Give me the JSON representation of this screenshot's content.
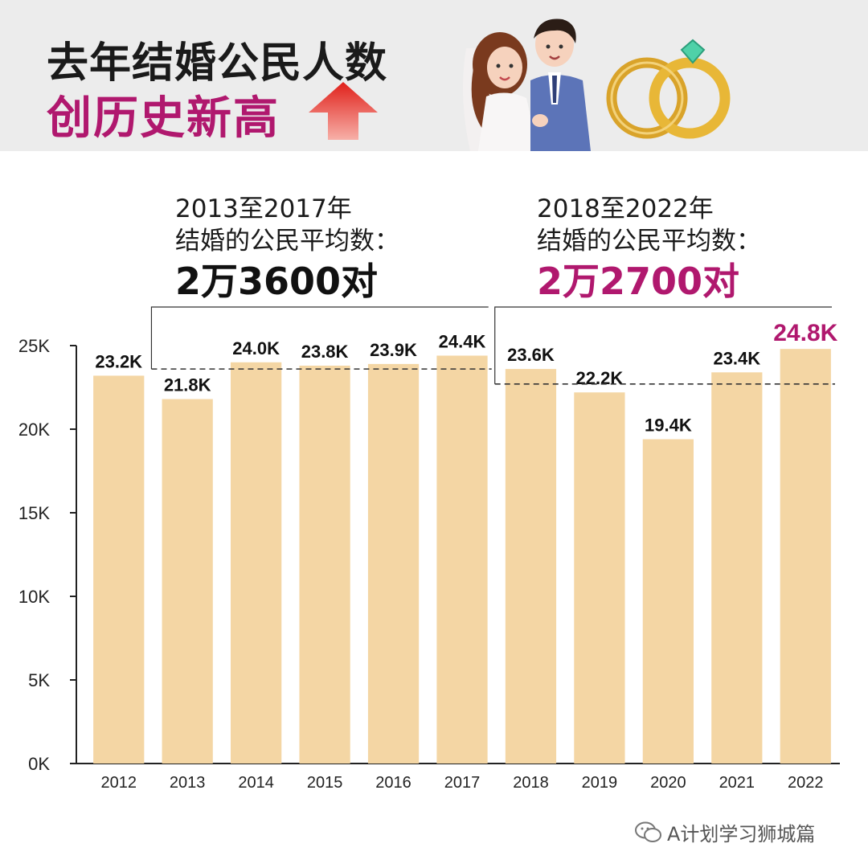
{
  "header": {
    "title_line1": "去年结婚公民人数",
    "title_line2": "创历史新高",
    "accent_color": "#b0186e",
    "arrow_color": "#e0201a"
  },
  "averages": [
    {
      "line1": "2013至2017年",
      "line2": "结婚的公民平均数：",
      "value": "2万3600对",
      "color": "#111111"
    },
    {
      "line1": "2018至2022年",
      "line2": "结婚的公民平均数：",
      "value": "2万2700对",
      "color": "#b0186e"
    }
  ],
  "watermark": "A计划学习狮城篇",
  "chart_data": {
    "type": "bar",
    "categories": [
      "2012",
      "2013",
      "2014",
      "2015",
      "2016",
      "2017",
      "2018",
      "2019",
      "2020",
      "2021",
      "2022"
    ],
    "values": [
      23200,
      21800,
      24000,
      23800,
      23900,
      24400,
      23600,
      22200,
      19400,
      23400,
      24800
    ],
    "data_labels": [
      "23.2K",
      "21.8K",
      "24.0K",
      "23.8K",
      "23.9K",
      "24.4K",
      "23.6K",
      "22.2K",
      "19.4K",
      "23.4K",
      "24.8K"
    ],
    "highlight_index": 10,
    "ylim": [
      0,
      25000
    ],
    "yticks": [
      0,
      5000,
      10000,
      15000,
      20000,
      25000
    ],
    "ytick_labels": [
      "0K",
      "5K",
      "10K",
      "15K",
      "20K",
      "25K"
    ],
    "bar_color": "#f4d6a4",
    "label_color": "#111111",
    "highlight_label_color": "#b0186e",
    "reference_lines": [
      {
        "from_index": 1,
        "to_index": 5,
        "value": 23600
      },
      {
        "from_index": 6,
        "to_index": 10,
        "value": 22700
      }
    ],
    "grid": false
  }
}
